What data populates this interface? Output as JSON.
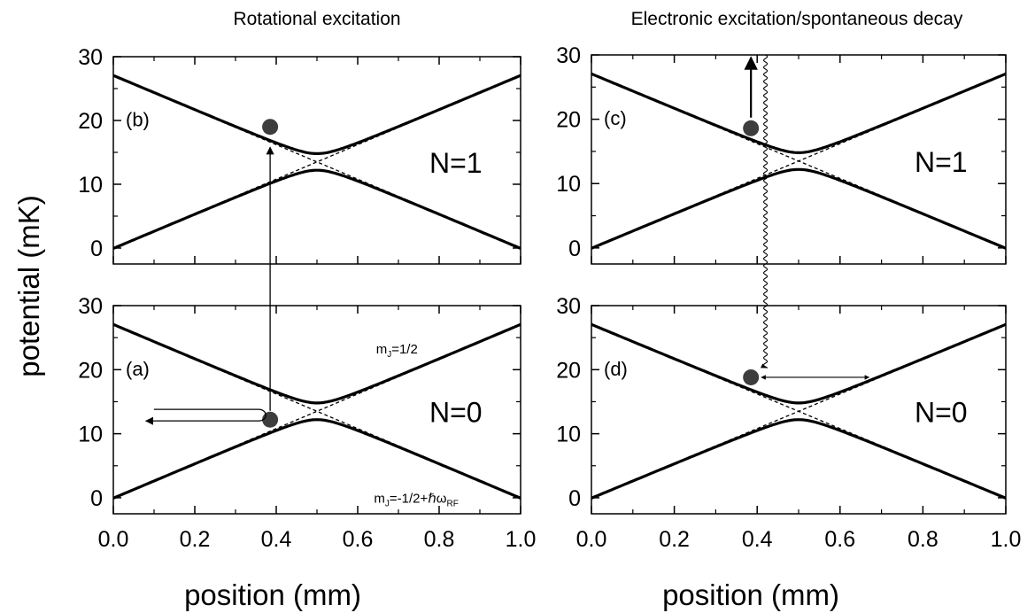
{
  "column_titles": {
    "left": "Rotational excitation",
    "right": "Electronic excitation/spontaneous decay"
  },
  "colors": {
    "curve": "#000000",
    "molecule": "#3d3d3d",
    "background": "#ffffff"
  },
  "chart_data": [
    {
      "type": "line",
      "panel": "(b)",
      "state_label": "N=1",
      "xlabel": "",
      "ylabel": "potential (mK)",
      "xlim": [
        0.0,
        1.0
      ],
      "ylim": [
        -2.5,
        30
      ],
      "yticks": [
        0,
        10,
        20,
        30
      ],
      "xticks": [],
      "series": [
        {
          "style": "solid",
          "x": [
            0.0,
            0.5,
            1.0
          ],
          "y": [
            27.0,
            14.8,
            27.0
          ]
        },
        {
          "style": "solid",
          "x": [
            0.0,
            0.5,
            1.0
          ],
          "y": [
            0.0,
            12.2,
            0.0
          ]
        },
        {
          "style": "dashed",
          "x": [
            0.0,
            0.5,
            1.0
          ],
          "y": [
            0.0,
            13.5,
            27.0
          ]
        },
        {
          "style": "dashed",
          "x": [
            0.0,
            0.5,
            1.0
          ],
          "y": [
            27.0,
            13.5,
            0.0
          ]
        }
      ],
      "molecule": {
        "x": 0.385,
        "y": 19
      }
    },
    {
      "type": "line",
      "panel": "(a)",
      "state_label": "N=0",
      "annotations": {
        "upper_state": {
          "text": "m",
          "sub": "J",
          "rest": "=1/2"
        },
        "lower_state": {
          "text": "m",
          "sub": "J",
          "rest": "=-1/2+ℏω",
          "sub2": "RF"
        }
      },
      "xlabel": "position (mm)",
      "ylabel": "potential (mK)",
      "xlim": [
        0.0,
        1.0
      ],
      "ylim": [
        -2.5,
        30
      ],
      "yticks": [
        0,
        10,
        20,
        30
      ],
      "xticks": [
        0.0,
        0.2,
        0.4,
        0.6,
        0.8,
        1.0
      ],
      "xtick_labels": [
        "0.0",
        "0.2",
        "0.4",
        "0.6",
        "0.8",
        "1.0"
      ],
      "series": [
        {
          "style": "solid",
          "x": [
            0.0,
            0.5,
            1.0
          ],
          "y": [
            27.0,
            14.8,
            27.0
          ]
        },
        {
          "style": "solid",
          "x": [
            0.0,
            0.5,
            1.0
          ],
          "y": [
            0.0,
            12.2,
            0.0
          ]
        },
        {
          "style": "dashed",
          "x": [
            0.0,
            0.5,
            1.0
          ],
          "y": [
            0.0,
            13.5,
            27.0
          ]
        },
        {
          "style": "dashed",
          "x": [
            0.0,
            0.5,
            1.0
          ],
          "y": [
            27.0,
            13.5,
            0.0
          ]
        }
      ],
      "molecule": {
        "x": 0.385,
        "y": 12.2
      }
    },
    {
      "type": "line",
      "panel": "(c)",
      "state_label": "N=1",
      "xlabel": "",
      "ylabel": "",
      "xlim": [
        0.0,
        1.0
      ],
      "ylim": [
        -2.5,
        30
      ],
      "yticks": [
        0,
        10,
        20,
        30
      ],
      "xticks": [],
      "series": [
        {
          "style": "solid",
          "x": [
            0.0,
            0.5,
            1.0
          ],
          "y": [
            27.0,
            14.8,
            27.0
          ]
        },
        {
          "style": "solid",
          "x": [
            0.0,
            0.5,
            1.0
          ],
          "y": [
            0.0,
            12.2,
            0.0
          ]
        },
        {
          "style": "dashed",
          "x": [
            0.0,
            0.5,
            1.0
          ],
          "y": [
            0.0,
            13.5,
            27.0
          ]
        },
        {
          "style": "dashed",
          "x": [
            0.0,
            0.5,
            1.0
          ],
          "y": [
            27.0,
            13.5,
            0.0
          ]
        }
      ],
      "molecule": {
        "x": 0.385,
        "y": 18.6
      }
    },
    {
      "type": "line",
      "panel": "(d)",
      "state_label": "N=0",
      "xlabel": "position (mm)",
      "ylabel": "",
      "xlim": [
        0.0,
        1.0
      ],
      "ylim": [
        -2.5,
        30
      ],
      "yticks": [
        0,
        10,
        20,
        30
      ],
      "xticks": [
        0.0,
        0.2,
        0.4,
        0.6,
        0.8,
        1.0
      ],
      "xtick_labels": [
        "0.0",
        "0.2",
        "0.4",
        "0.6",
        "0.8",
        "1.0"
      ],
      "series": [
        {
          "style": "solid",
          "x": [
            0.0,
            0.5,
            1.0
          ],
          "y": [
            27.0,
            14.8,
            27.0
          ]
        },
        {
          "style": "solid",
          "x": [
            0.0,
            0.5,
            1.0
          ],
          "y": [
            0.0,
            12.2,
            0.0
          ]
        },
        {
          "style": "dashed",
          "x": [
            0.0,
            0.5,
            1.0
          ],
          "y": [
            0.0,
            13.5,
            27.0
          ]
        },
        {
          "style": "dashed",
          "x": [
            0.0,
            0.5,
            1.0
          ],
          "y": [
            27.0,
            13.5,
            0.0
          ]
        }
      ],
      "molecule": {
        "x": 0.385,
        "y": 18.8
      }
    }
  ]
}
